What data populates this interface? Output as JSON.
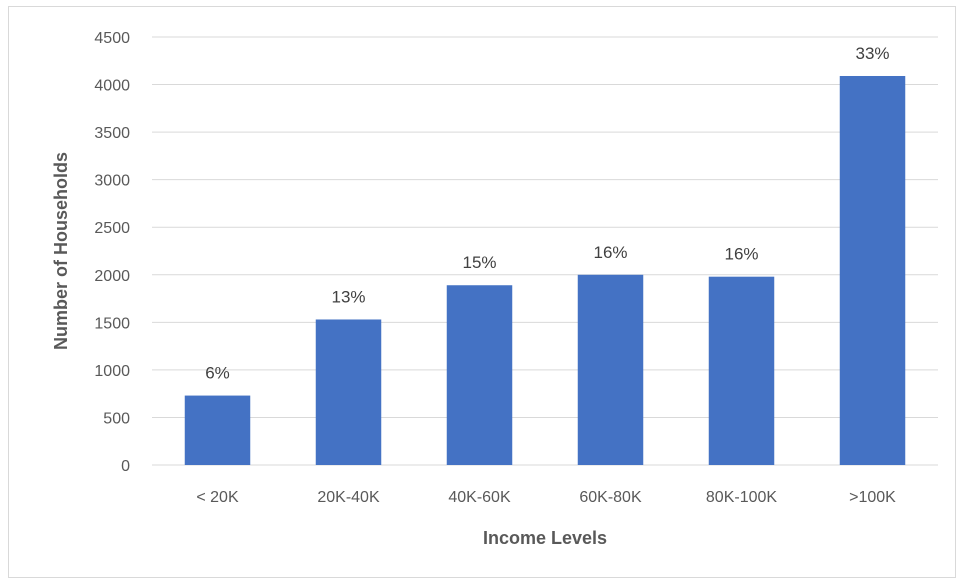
{
  "chart_data": {
    "type": "bar",
    "title": "",
    "xlabel": "Income Levels",
    "ylabel": "Number of Households",
    "categories": [
      "< 20K",
      "20K-40K",
      "40K-60K",
      "60K-80K",
      "80K-100K",
      ">100K"
    ],
    "values": [
      730,
      1530,
      1890,
      2000,
      1980,
      4090
    ],
    "data_labels": [
      "6%",
      "13%",
      "15%",
      "16%",
      "16%",
      "33%"
    ],
    "ylim": [
      0,
      4500
    ],
    "yticks": [
      0,
      500,
      1000,
      1500,
      2000,
      2500,
      3000,
      3500,
      4000,
      4500
    ],
    "grid": true,
    "legend": "none",
    "bar_color": "#4472c4",
    "grid_color": "#d9d9d9"
  }
}
